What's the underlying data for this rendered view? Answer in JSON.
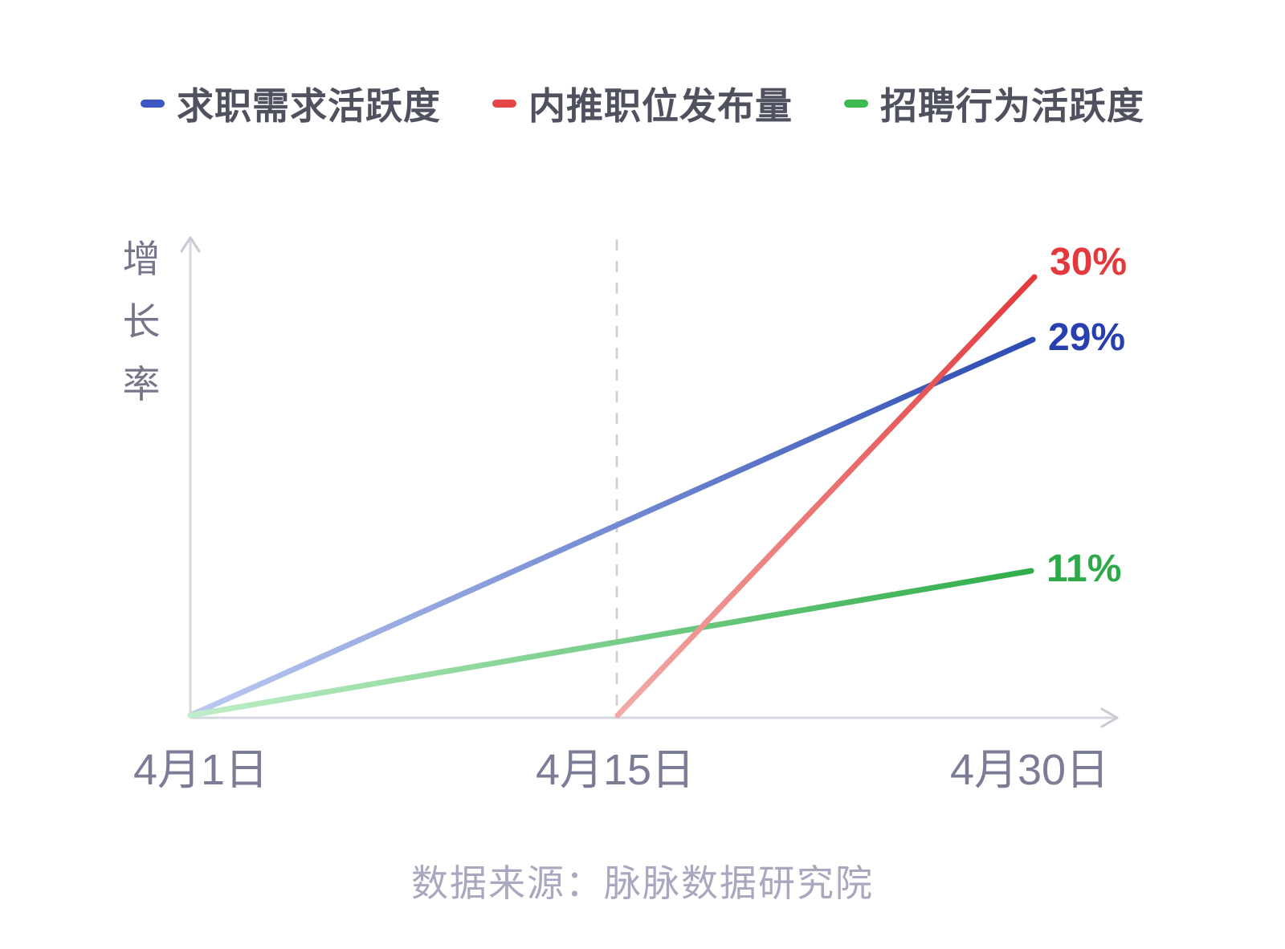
{
  "chart_data": {
    "type": "line",
    "title": "",
    "ylabel": "增长率",
    "xlabel": "",
    "x_ticks": [
      "4月1日",
      "4月15日",
      "4月30日"
    ],
    "ylim": [
      0,
      35
    ],
    "grid": false,
    "legend_position": "top",
    "annotations": {
      "dashed_vertical_at": "4月15日"
    },
    "series": [
      {
        "name": "求职需求活跃度",
        "points": [
          {
            "x": "4月1日",
            "y": 0
          },
          {
            "x": "4月30日",
            "y": 29
          }
        ],
        "end_label": "29%",
        "legend_color": "#3B57C1",
        "color_start": "#BCCAF1",
        "color_end": "#2C4BB3",
        "label_color": "#283FB0"
      },
      {
        "name": "内推职位发布量",
        "points": [
          {
            "x": "4月15日",
            "y": 0
          },
          {
            "x": "4月30日",
            "y": 30
          }
        ],
        "end_label": "30%",
        "legend_color": "#E44745",
        "color_start": "#F2ABA8",
        "color_end": "#E23A3C",
        "label_color": "#E5383C"
      },
      {
        "name": "招聘行为活跃度",
        "points": [
          {
            "x": "4月1日",
            "y": 0
          },
          {
            "x": "4月30日",
            "y": 11
          }
        ],
        "end_label": "11%",
        "legend_color": "#3DBA50",
        "color_start": "#BFEEC8",
        "color_end": "#30AD4A",
        "label_color": "#2EA94A"
      }
    ]
  },
  "footer": {
    "source": "数据来源：脉脉数据研究院"
  }
}
